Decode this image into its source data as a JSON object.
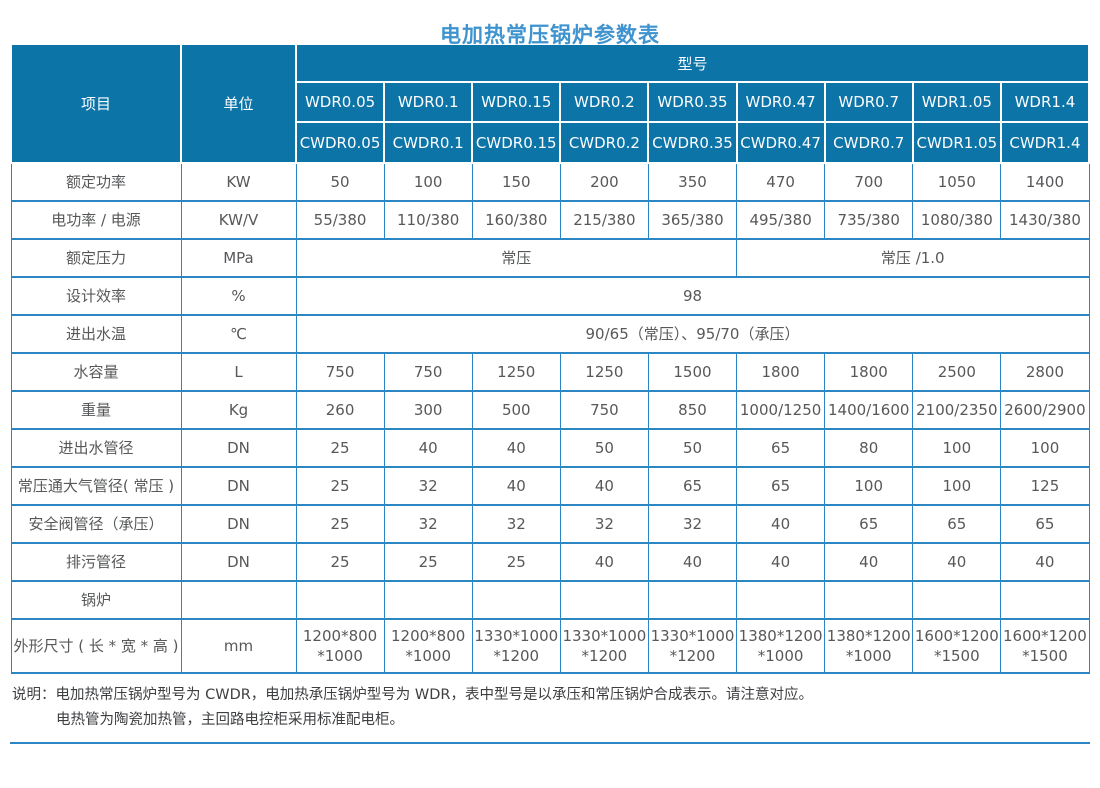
{
  "page": {
    "title": "电加热常压锅炉参数表"
  },
  "colors": {
    "title_text": "#3f94cf",
    "header_bg": "#0d74a8",
    "header_text": "#fbfdfe",
    "table_border": "#2b86c3",
    "body_text": "#57585a"
  },
  "table": {
    "corner_item_label": "项目",
    "corner_unit_label": "单位",
    "model_group_label": "型号",
    "model_rows": [
      [
        "WDR0.05",
        "WDR0.1",
        "WDR0.15",
        "WDR0.2",
        "WDR0.35",
        "WDR0.47",
        "WDR0.7",
        "WDR1.05",
        "WDR1.4"
      ],
      [
        "CWDR0.05",
        "CWDR0.1",
        "CWDR0.15",
        "CWDR0.2",
        "CWDR0.35",
        "CWDR0.47",
        "CWDR0.7",
        "CWDR1.05",
        "CWDR1.4"
      ]
    ],
    "rows": [
      {
        "label": "额定功率",
        "unit": "KW",
        "cells": [
          {
            "text": "50"
          },
          {
            "text": "100"
          },
          {
            "text": "150"
          },
          {
            "text": "200"
          },
          {
            "text": "350"
          },
          {
            "text": "470"
          },
          {
            "text": "700"
          },
          {
            "text": "1050"
          },
          {
            "text": "1400"
          }
        ]
      },
      {
        "label": "电功率 / 电源",
        "unit": "KW/V",
        "cells": [
          {
            "text": "55/380"
          },
          {
            "text": "110/380"
          },
          {
            "text": "160/380"
          },
          {
            "text": "215/380"
          },
          {
            "text": "365/380"
          },
          {
            "text": "495/380"
          },
          {
            "text": "735/380"
          },
          {
            "text": "1080/380"
          },
          {
            "text": "1430/380"
          }
        ]
      },
      {
        "label": "额定压力",
        "unit": "MPa",
        "cells": [
          {
            "text": "常压",
            "span": 5
          },
          {
            "text": "常压 /1.0",
            "span": 4
          }
        ]
      },
      {
        "label": "设计效率",
        "unit": "%",
        "cells": [
          {
            "text": "98",
            "span": 9
          }
        ]
      },
      {
        "label": "进出水温",
        "unit": "℃",
        "cells": [
          {
            "text": "90/65（常压）、95/70（承压）",
            "span": 9
          }
        ]
      },
      {
        "label": "水容量",
        "unit": "L",
        "cells": [
          {
            "text": "750"
          },
          {
            "text": "750"
          },
          {
            "text": "1250"
          },
          {
            "text": "1250"
          },
          {
            "text": "1500"
          },
          {
            "text": "1800"
          },
          {
            "text": "1800"
          },
          {
            "text": "2500"
          },
          {
            "text": "2800"
          }
        ]
      },
      {
        "label": "重量",
        "unit": "Kg",
        "cells": [
          {
            "text": "260"
          },
          {
            "text": "300"
          },
          {
            "text": "500"
          },
          {
            "text": "750"
          },
          {
            "text": "850"
          },
          {
            "text": "1000/1250"
          },
          {
            "text": "1400/1600"
          },
          {
            "text": "2100/2350"
          },
          {
            "text": "2600/2900"
          }
        ]
      },
      {
        "label": "进出水管径",
        "unit": "DN",
        "cells": [
          {
            "text": "25"
          },
          {
            "text": "40"
          },
          {
            "text": "40"
          },
          {
            "text": "50"
          },
          {
            "text": "50"
          },
          {
            "text": "65"
          },
          {
            "text": "80"
          },
          {
            "text": "100"
          },
          {
            "text": "100"
          }
        ]
      },
      {
        "label": "常压通大气管径( 常压 )",
        "unit": "DN",
        "cells": [
          {
            "text": "25"
          },
          {
            "text": "32"
          },
          {
            "text": "40"
          },
          {
            "text": "40"
          },
          {
            "text": "65"
          },
          {
            "text": "65"
          },
          {
            "text": "100"
          },
          {
            "text": "100"
          },
          {
            "text": "125"
          }
        ]
      },
      {
        "label": "安全阀管径（承压）",
        "unit": "DN",
        "cells": [
          {
            "text": "25"
          },
          {
            "text": "32"
          },
          {
            "text": "32"
          },
          {
            "text": "32"
          },
          {
            "text": "32"
          },
          {
            "text": "40"
          },
          {
            "text": "65"
          },
          {
            "text": "65"
          },
          {
            "text": "65"
          }
        ]
      },
      {
        "label": "排污管径",
        "unit": "DN",
        "cells": [
          {
            "text": "25"
          },
          {
            "text": "25"
          },
          {
            "text": "25"
          },
          {
            "text": "40"
          },
          {
            "text": "40"
          },
          {
            "text": "40"
          },
          {
            "text": "40"
          },
          {
            "text": "40"
          },
          {
            "text": "40"
          }
        ]
      },
      {
        "label": "锅炉",
        "unit": "",
        "cells": [
          {
            "text": ""
          },
          {
            "text": ""
          },
          {
            "text": ""
          },
          {
            "text": ""
          },
          {
            "text": ""
          },
          {
            "text": ""
          },
          {
            "text": ""
          },
          {
            "text": ""
          },
          {
            "text": ""
          }
        ]
      },
      {
        "label": "外形尺寸 ( 长 * 宽 * 高 )",
        "unit": "mm",
        "cells": [
          {
            "text": "1200*800\n*1000"
          },
          {
            "text": "1200*800\n*1000"
          },
          {
            "text": "1330*1000\n*1200"
          },
          {
            "text": "1330*1000\n*1200"
          },
          {
            "text": "1330*1000\n*1200"
          },
          {
            "text": "1380*1200\n*1000"
          },
          {
            "text": "1380*1200\n*1000"
          },
          {
            "text": "1600*1200\n*1500"
          },
          {
            "text": "1600*1200\n*1500"
          }
        ]
      }
    ]
  },
  "notes": {
    "prefix": "说明：",
    "line1": "电加热常压锅炉型号为 CWDR，电加热承压锅炉型号为 WDR，表中型号是以承压和常压锅炉合成表示。请注意对应。",
    "line2": "电热管为陶瓷加热管，主回路电控柜采用标准配电柜。"
  }
}
